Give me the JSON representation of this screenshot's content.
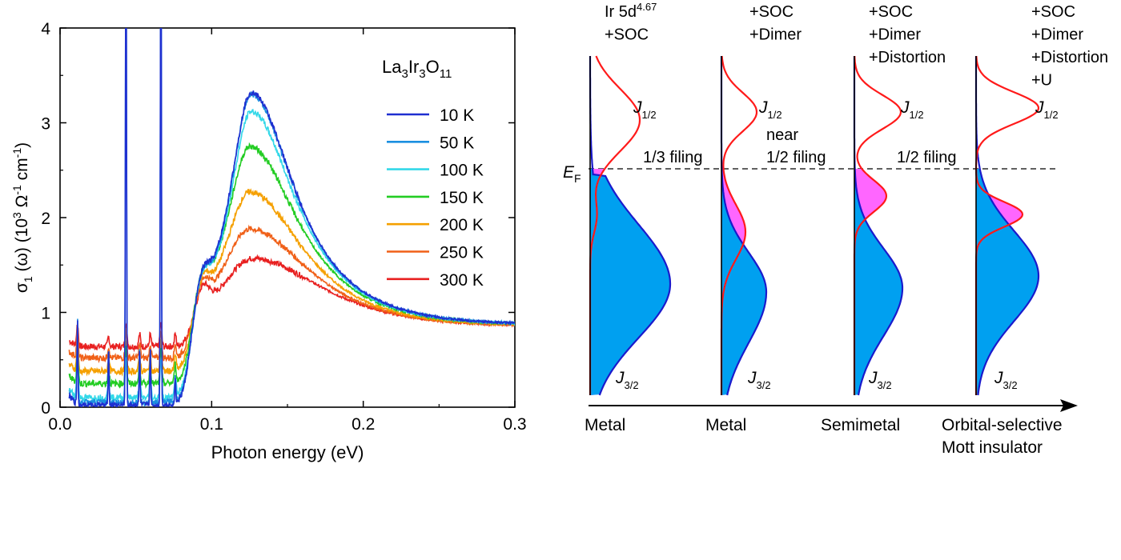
{
  "chart_data": [
    {
      "type": "line",
      "title": "",
      "xlabel": "Photon energy (eV)",
      "ylabel": "σ1 (ω) (10³ Ω⁻¹ cm⁻¹)",
      "ylabel_parts": {
        "sigma": "σ",
        "sub1": "1",
        "omega": " (ω) (10",
        "sup3": "3",
        "ohm": " Ω",
        "supm1": "-1",
        "cm": " cm",
        "supm1b": "-1",
        "close": ")"
      },
      "xlim": [
        0.0,
        0.3
      ],
      "ylim": [
        0,
        4
      ],
      "x_ticks": [
        0.0,
        0.1,
        0.2,
        0.3
      ],
      "x_tick_labels": [
        "0.0",
        "0.1",
        "0.2",
        "0.3"
      ],
      "y_ticks": [
        0,
        1,
        2,
        3,
        4
      ],
      "y_tick_labels": [
        "0",
        "1",
        "2",
        "3",
        "4"
      ],
      "legend_title": {
        "p1": "La",
        "s1": "3",
        "p2": "Ir",
        "s2": "3",
        "p3": "O",
        "s3": "11"
      },
      "legend_position": "top-right",
      "phonon_peaks_eV": [
        0.0115,
        0.032,
        0.0435,
        0.0525,
        0.0595,
        0.0665,
        0.076
      ],
      "series": [
        {
          "name": "10 K",
          "color": "#1f2fd0",
          "baseline": 0.02,
          "onset_level": 0.08,
          "peak_value": 3.32,
          "peak_energy": 0.126,
          "width": 0.032
        },
        {
          "name": "50 K",
          "color": "#1a8fe0",
          "baseline": 0.05,
          "onset_level": 0.1,
          "peak_value": 3.3,
          "peak_energy": 0.126,
          "width": 0.032
        },
        {
          "name": "100 K",
          "color": "#33d8e8",
          "baseline": 0.1,
          "onset_level": 0.15,
          "peak_value": 3.12,
          "peak_energy": 0.126,
          "width": 0.033
        },
        {
          "name": "150 K",
          "color": "#22cc22",
          "baseline": 0.25,
          "onset_level": 0.3,
          "peak_value": 2.75,
          "peak_energy": 0.125,
          "width": 0.036
        },
        {
          "name": "200 K",
          "color": "#f5a000",
          "baseline": 0.38,
          "onset_level": 0.45,
          "peak_value": 2.27,
          "peak_energy": 0.125,
          "width": 0.04
        },
        {
          "name": "250 K",
          "color": "#f06018",
          "baseline": 0.52,
          "onset_level": 0.6,
          "peak_value": 1.88,
          "peak_energy": 0.125,
          "width": 0.046
        },
        {
          "name": "300 K",
          "color": "#e82020",
          "baseline": 0.64,
          "onset_level": 0.72,
          "peak_value": 1.57,
          "peak_energy": 0.127,
          "width": 0.055
        }
      ],
      "high_energy_value_at_0_3": 0.78
    },
    {
      "type": "diagram",
      "axis_color": "#000000",
      "j12_color": "#ff1a1a",
      "j32_color": "#1a1acc",
      "filled_occupied_color": "#00a0f0",
      "filled_upper_color": "#ff66ff",
      "fermi_label": {
        "main": "E",
        "sub": "F"
      },
      "panels": [
        {
          "header": [
            "Ir 5d",
            "+SOC"
          ],
          "header_sup": "4.67",
          "j12": {
            "main": "J",
            "sub": "1/2"
          },
          "j32": {
            "main": "J",
            "sub": "3/2"
          },
          "filling": [
            "1/3 filing"
          ],
          "state": [
            "Metal"
          ]
        },
        {
          "header": [
            "+SOC",
            "+Dimer"
          ],
          "header_sup": "",
          "j12": {
            "main": "J",
            "sub": "1/2"
          },
          "j32": {
            "main": "J",
            "sub": "3/2"
          },
          "filling": [
            "near",
            "1/2 filing"
          ],
          "state": [
            "Metal"
          ]
        },
        {
          "header": [
            "+SOC",
            "+Dimer",
            "+Distortion"
          ],
          "header_sup": "",
          "j12": {
            "main": "J",
            "sub": "1/2"
          },
          "j32": {
            "main": "J",
            "sub": "3/2"
          },
          "filling": [
            "1/2 filing"
          ],
          "state": [
            "Semimetal"
          ]
        },
        {
          "header": [
            "+SOC",
            "+Dimer",
            "+Distortion",
            "+U"
          ],
          "header_sup": "",
          "j12": {
            "main": "J",
            "sub": "1/2"
          },
          "j32": {
            "main": "J",
            "sub": "3/2"
          },
          "filling": [],
          "state": [
            "Orbital-selective",
            "Mott insulator"
          ]
        }
      ]
    }
  ]
}
